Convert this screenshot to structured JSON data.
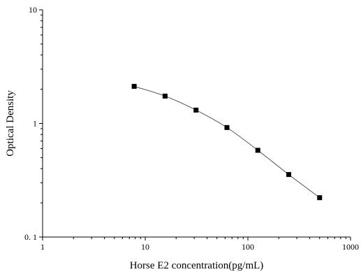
{
  "chart_data": {
    "type": "scatter",
    "xlabel": "Horse E2 concentration(pg/mL)",
    "ylabel": "Optical Density",
    "xscale": "log",
    "yscale": "log",
    "xlim": [
      1,
      1000
    ],
    "ylim": [
      0.1,
      10
    ],
    "xticks": [
      1,
      10,
      100,
      1000
    ],
    "xtick_labels": [
      "1",
      "10",
      "100",
      "1000"
    ],
    "yticks": [
      0.1,
      1,
      10
    ],
    "ytick_labels": [
      "0. 1",
      "1",
      "10"
    ],
    "grid": false,
    "legend": "none",
    "fit_line": true,
    "series": [
      {
        "marker": "square",
        "color": "#000000",
        "x": [
          7.8,
          15.6,
          31.25,
          62.5,
          125,
          250,
          500
        ],
        "y": [
          2.12,
          1.74,
          1.31,
          0.92,
          0.58,
          0.355,
          0.222
        ]
      }
    ]
  }
}
